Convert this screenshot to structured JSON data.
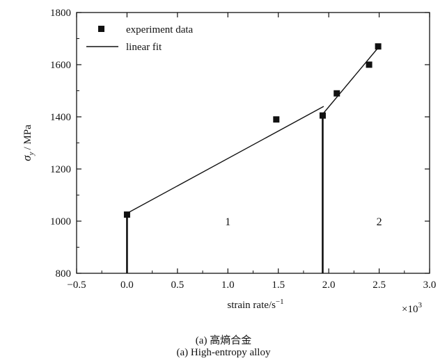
{
  "chart_data": {
    "type": "scatter",
    "xlabel": "strain rate/s",
    "xlabel_superscript": "−1",
    "ylabel_symbol": "σ",
    "ylabel_subscript": "y",
    "ylabel_unit": "/ MPa",
    "x_multiplier": "×10",
    "x_multiplier_exp": "3",
    "xlim": [
      -0.5,
      3.0
    ],
    "ylim": [
      800,
      1800
    ],
    "xticks": [
      -0.5,
      0.0,
      0.5,
      1.0,
      1.5,
      2.0,
      2.5,
      3.0
    ],
    "xtick_labels": [
      "−0.5",
      "0.0",
      "0.5",
      "1.0",
      "1.5",
      "2.0",
      "2.5",
      "3.0"
    ],
    "yticks": [
      800,
      1000,
      1200,
      1400,
      1600,
      1800
    ],
    "ytick_labels": [
      "800",
      "1000",
      "1200",
      "1400",
      "1600",
      "1800"
    ],
    "grid": false,
    "legend_position": "top-left",
    "series": [
      {
        "name": "experiment data",
        "kind": "points",
        "x": [
          0.0,
          1.48,
          1.94,
          2.08,
          2.4,
          2.49
        ],
        "y": [
          1025,
          1390,
          1405,
          1490,
          1600,
          1670
        ]
      },
      {
        "name": "linear fit",
        "kind": "lines",
        "segments": [
          {
            "x": [
              0.0,
              1.95
            ],
            "y": [
              1030,
              1440
            ]
          },
          {
            "x": [
              1.95,
              2.49
            ],
            "y": [
              1415,
              1665
            ]
          }
        ]
      }
    ],
    "vertical_lines": [
      {
        "x": 0.0,
        "y_top": 1025
      },
      {
        "x": 1.94,
        "y_top": 1405
      }
    ],
    "region_labels": [
      {
        "text": "1",
        "x": 1.0,
        "y": 1000
      },
      {
        "text": "2",
        "x": 2.5,
        "y": 1000
      }
    ]
  },
  "caption": {
    "line1": "(a) 高熵合金",
    "line2": "(a) High-entropy alloy"
  }
}
